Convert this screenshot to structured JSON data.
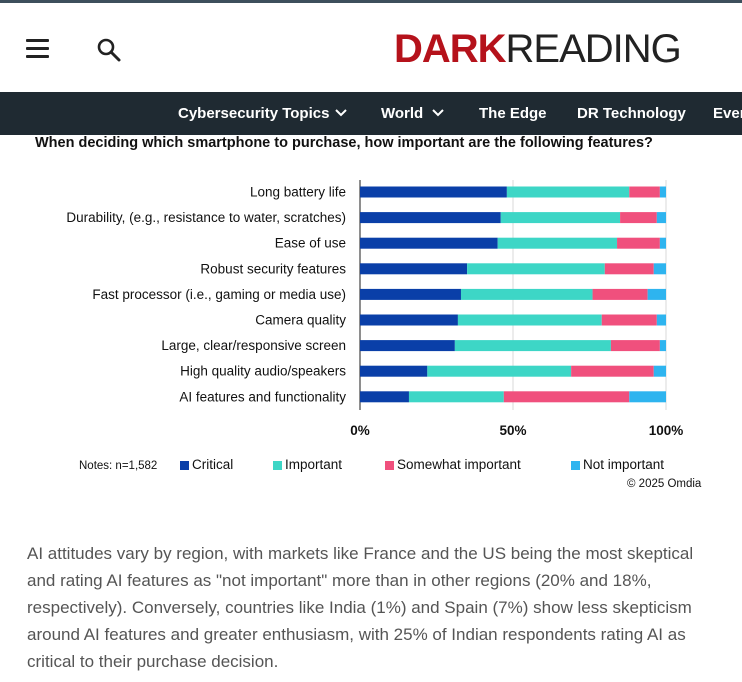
{
  "header": {
    "logo_dark": "DARK",
    "logo_reading": "READING",
    "menu_icon": "hamburger-menu-icon",
    "search_icon": "search-icon"
  },
  "nav": {
    "items": [
      {
        "label": "Cybersecurity Topics",
        "has_dropdown": true
      },
      {
        "label": "World",
        "has_dropdown": true
      },
      {
        "label": "The Edge",
        "has_dropdown": false
      },
      {
        "label": "DR Technology",
        "has_dropdown": false
      },
      {
        "label": "Even",
        "has_dropdown": false
      }
    ],
    "background": "#1f2a32"
  },
  "chart_data": {
    "type": "bar",
    "stacked": true,
    "orientation": "horizontal",
    "title": "When deciding which smartphone to purchase, how important are the following features?",
    "categories": [
      "Long battery life",
      "Durability, (e.g., resistance to water, scratches)",
      "Ease of use",
      "Robust security features",
      "Fast processor (i.e., gaming or media use)",
      "Camera quality",
      "Large, clear/responsive screen",
      "High quality audio/speakers",
      "AI features and functionality"
    ],
    "series": [
      {
        "name": "Critical",
        "color": "#0a3fa8",
        "values": [
          48,
          46,
          45,
          35,
          33,
          32,
          31,
          22,
          16
        ]
      },
      {
        "name": "Important",
        "color": "#3dd6c6",
        "values": [
          40,
          39,
          39,
          45,
          43,
          47,
          51,
          47,
          31
        ]
      },
      {
        "name": "Somewhat important",
        "color": "#f0507d",
        "values": [
          10,
          12,
          14,
          16,
          18,
          18,
          16,
          27,
          41
        ]
      },
      {
        "name": "Not important",
        "color": "#2eb4ef",
        "values": [
          2,
          3,
          2,
          4,
          6,
          3,
          2,
          4,
          12
        ]
      }
    ],
    "xticks": [
      "0%",
      "50%",
      "100%"
    ],
    "xlim": [
      0,
      100
    ],
    "grid": true,
    "legend_position": "bottom",
    "notes": "Notes: n=1,582",
    "source": "© 2025 Omdia"
  },
  "article": {
    "paragraph": "AI attitudes vary by region, with markets like France and the US being the most skeptical and rating AI features as \"not important\" more than in other regions (20% and 18%, respectively). Conversely, countries like India (1%) and Spain (7%) show less skepticism around AI features and greater enthusiasm, with 25% of Indian respondents rating AI as critical to their purchase decision."
  }
}
